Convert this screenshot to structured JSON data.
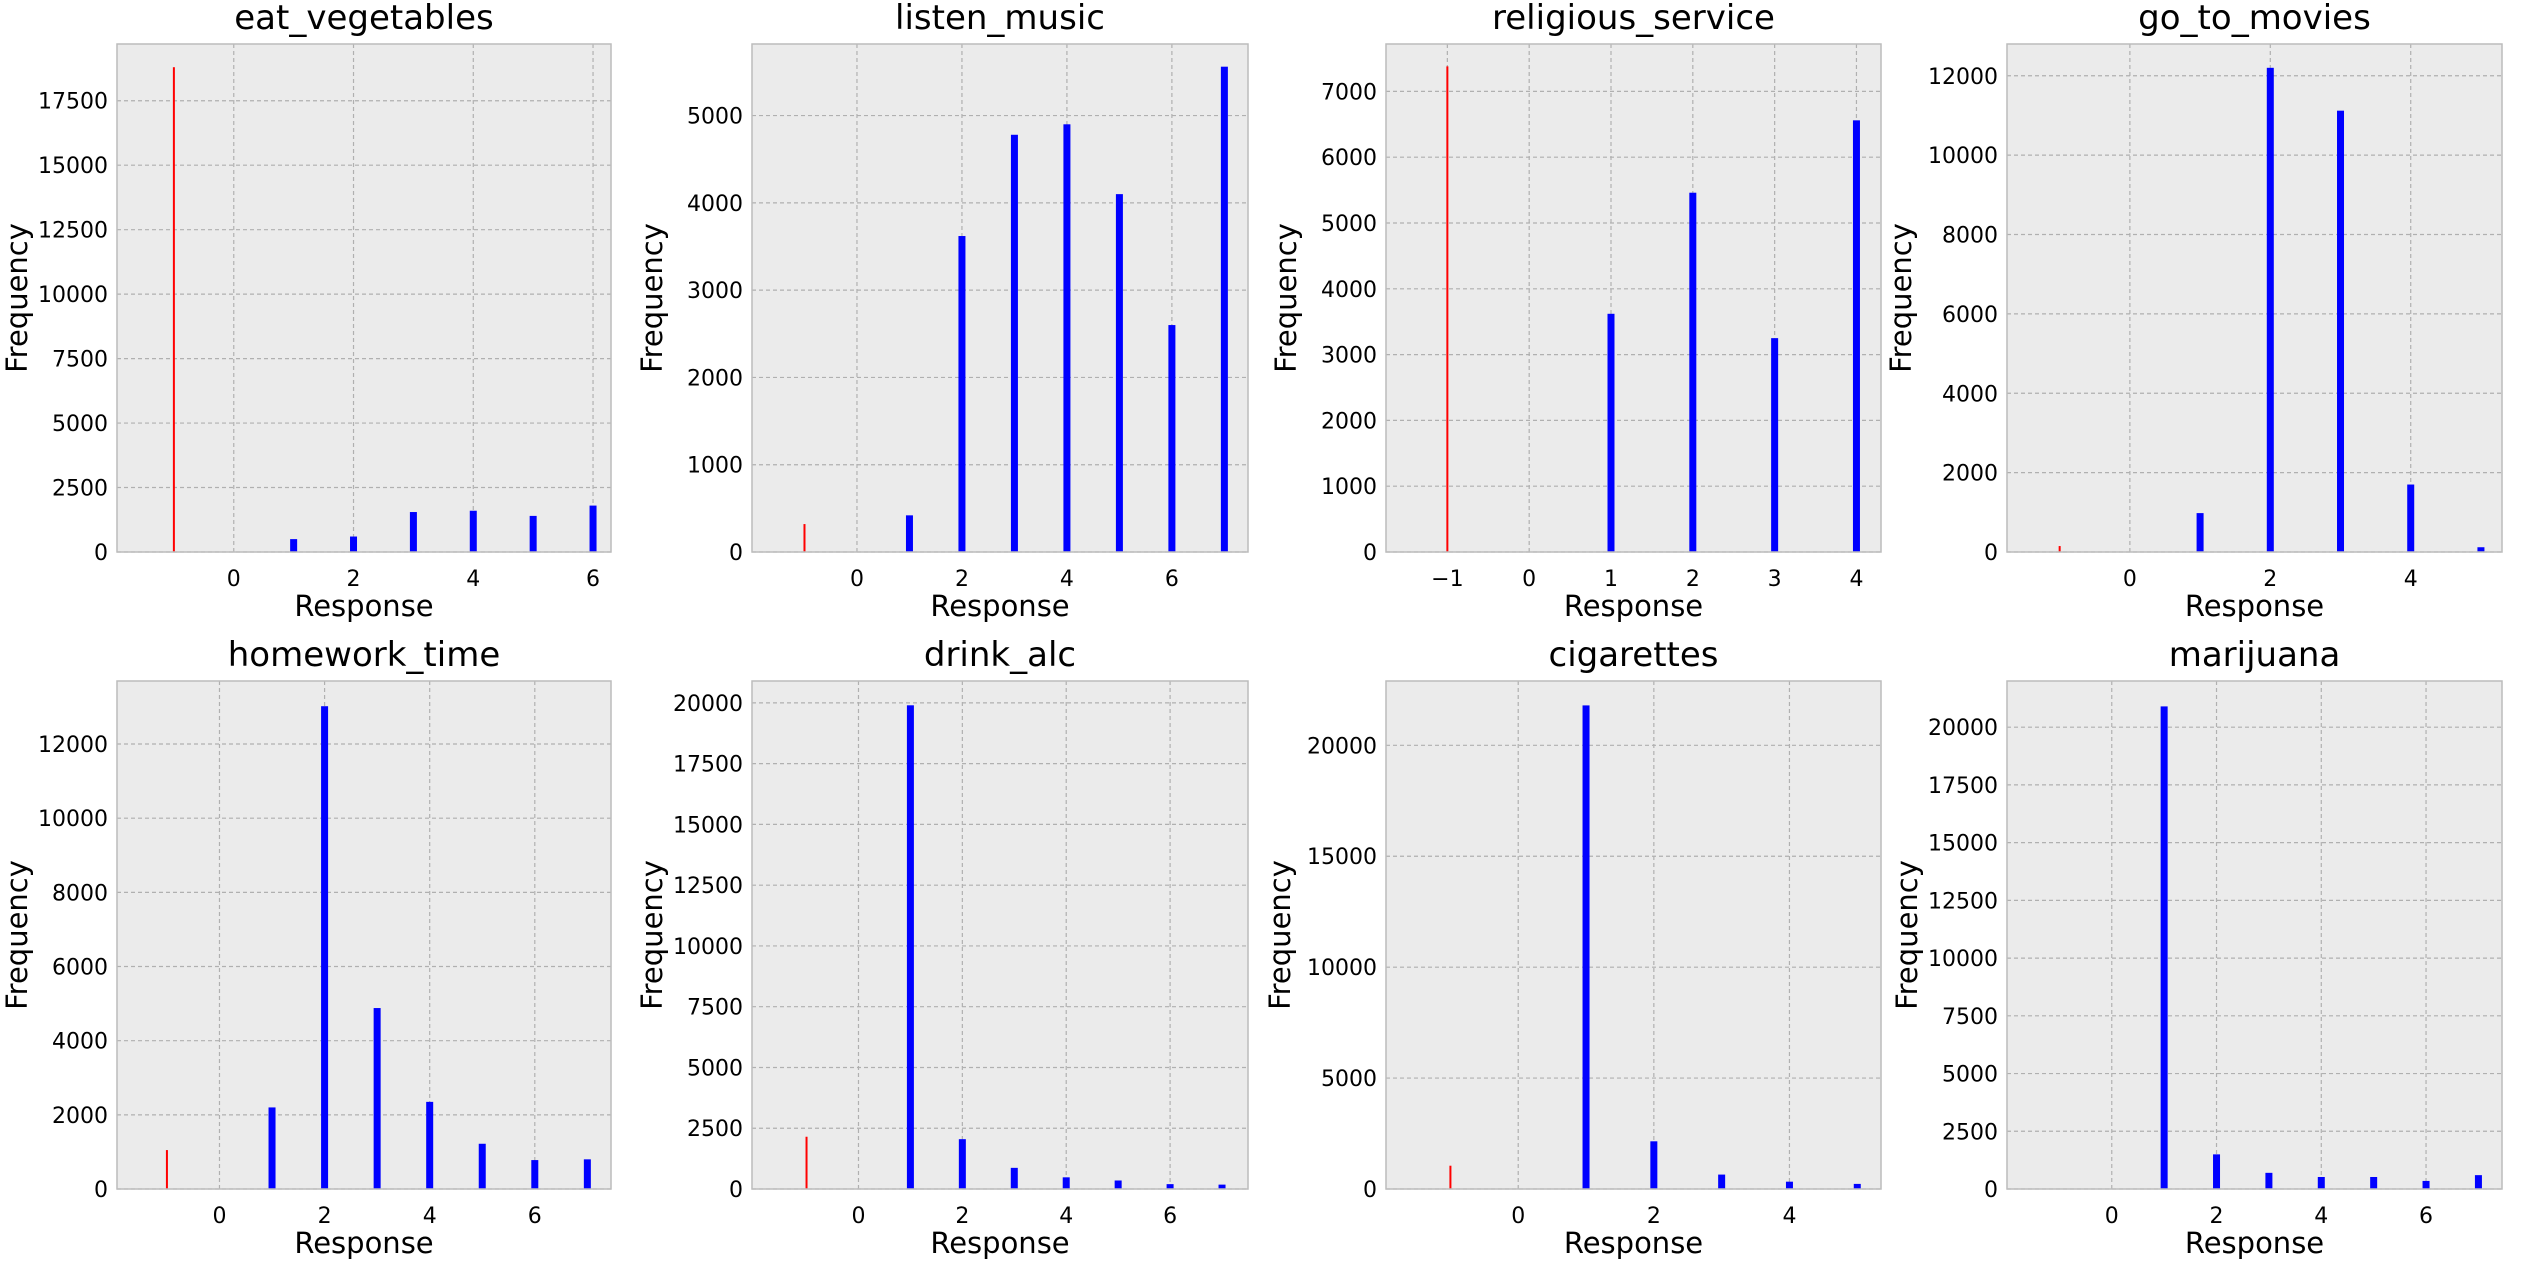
{
  "colors": {
    "background": "#ebebeb",
    "grid": "#b0b0b0",
    "negative_bar": "#ff0000",
    "positive_bar": "#0000ff"
  },
  "chart_data": [
    {
      "type": "bar",
      "title": "eat_vegetables",
      "xlabel": "Response",
      "ylabel": "Frequency",
      "xlim": [
        -1.95,
        6.3
      ],
      "ylim": [
        0,
        19700
      ],
      "xticks": [
        0,
        2,
        4,
        6
      ],
      "xtick_labels": [
        "0",
        "2",
        "4",
        "6"
      ],
      "yticks": [
        0,
        2500,
        5000,
        7500,
        10000,
        12500,
        15000,
        17500
      ],
      "ytick_labels": [
        "0",
        "2500",
        "5000",
        "7500",
        "10000",
        "12500",
        "15000",
        "17500"
      ],
      "grid": true,
      "bars": [
        {
          "x": -1,
          "value": 18800
        },
        {
          "x": 1,
          "value": 500
        },
        {
          "x": 2,
          "value": 600
        },
        {
          "x": 3,
          "value": 1550
        },
        {
          "x": 4,
          "value": 1600
        },
        {
          "x": 5,
          "value": 1400
        },
        {
          "x": 6,
          "value": 1800
        }
      ]
    },
    {
      "type": "bar",
      "title": "listen_music",
      "xlabel": "Response",
      "ylabel": "Frequency",
      "xlim": [
        -2.0,
        7.45
      ],
      "ylim": [
        0,
        5820
      ],
      "xticks": [
        0,
        2,
        4,
        6
      ],
      "xtick_labels": [
        "0",
        "2",
        "4",
        "6"
      ],
      "yticks": [
        0,
        1000,
        2000,
        3000,
        4000,
        5000
      ],
      "ytick_labels": [
        "0",
        "1000",
        "2000",
        "3000",
        "4000",
        "5000"
      ],
      "grid": true,
      "bars": [
        {
          "x": -1,
          "value": 320
        },
        {
          "x": 1,
          "value": 420
        },
        {
          "x": 2,
          "value": 3620
        },
        {
          "x": 3,
          "value": 4780
        },
        {
          "x": 4,
          "value": 4900
        },
        {
          "x": 5,
          "value": 4100
        },
        {
          "x": 6,
          "value": 2600
        },
        {
          "x": 7,
          "value": 5560
        }
      ]
    },
    {
      "type": "bar",
      "title": "religious_service",
      "xlabel": "Response",
      "ylabel": "Frequency",
      "xlim": [
        -1.75,
        4.3
      ],
      "ylim": [
        0,
        7720
      ],
      "xticks": [
        -1,
        0,
        1,
        2,
        3,
        4
      ],
      "xtick_labels": [
        "−1",
        "0",
        "1",
        "2",
        "3",
        "4"
      ],
      "yticks": [
        0,
        1000,
        2000,
        3000,
        4000,
        5000,
        6000,
        7000
      ],
      "ytick_labels": [
        "0",
        "1000",
        "2000",
        "3000",
        "4000",
        "5000",
        "6000",
        "7000"
      ],
      "grid": true,
      "bars": [
        {
          "x": -1,
          "value": 7380
        },
        {
          "x": 1,
          "value": 3620
        },
        {
          "x": 2,
          "value": 5460
        },
        {
          "x": 3,
          "value": 3250
        },
        {
          "x": 4,
          "value": 6560
        }
      ]
    },
    {
      "type": "bar",
      "title": "go_to_movies",
      "xlabel": "Response",
      "ylabel": "Frequency",
      "xlim": [
        -1.75,
        5.3
      ],
      "ylim": [
        0,
        12800
      ],
      "xticks": [
        0,
        2,
        4
      ],
      "xtick_labels": [
        "0",
        "2",
        "4"
      ],
      "yticks": [
        0,
        2000,
        4000,
        6000,
        8000,
        10000,
        12000
      ],
      "ytick_labels": [
        "0",
        "2000",
        "4000",
        "6000",
        "8000",
        "10000",
        "12000"
      ],
      "grid": true,
      "bars": [
        {
          "x": -1,
          "value": 150
        },
        {
          "x": 1,
          "value": 980
        },
        {
          "x": 2,
          "value": 12200
        },
        {
          "x": 3,
          "value": 11120
        },
        {
          "x": 4,
          "value": 1700
        },
        {
          "x": 5,
          "value": 120
        }
      ]
    },
    {
      "type": "bar",
      "title": "homework_time",
      "xlabel": "Response",
      "ylabel": "Frequency",
      "xlim": [
        -1.95,
        7.45
      ],
      "ylim": [
        0,
        13700
      ],
      "xticks": [
        0,
        2,
        4,
        6
      ],
      "xtick_labels": [
        "0",
        "2",
        "4",
        "6"
      ],
      "yticks": [
        0,
        2000,
        4000,
        6000,
        8000,
        10000,
        12000
      ],
      "ytick_labels": [
        "0",
        "2000",
        "4000",
        "6000",
        "8000",
        "10000",
        "12000"
      ],
      "grid": true,
      "bars": [
        {
          "x": -1,
          "value": 1050
        },
        {
          "x": 1,
          "value": 2200
        },
        {
          "x": 2,
          "value": 13020
        },
        {
          "x": 3,
          "value": 4880
        },
        {
          "x": 4,
          "value": 2350
        },
        {
          "x": 5,
          "value": 1220
        },
        {
          "x": 6,
          "value": 780
        },
        {
          "x": 7,
          "value": 800
        }
      ]
    },
    {
      "type": "bar",
      "title": "drink_alc",
      "xlabel": "Response",
      "ylabel": "Frequency",
      "xlim": [
        -2.05,
        7.5
      ],
      "ylim": [
        0,
        20900
      ],
      "xticks": [
        0,
        2,
        4,
        6
      ],
      "xtick_labels": [
        "0",
        "2",
        "4",
        "6"
      ],
      "yticks": [
        0,
        2500,
        5000,
        7500,
        10000,
        12500,
        15000,
        17500,
        20000
      ],
      "ytick_labels": [
        "0",
        "2500",
        "5000",
        "7500",
        "10000",
        "12500",
        "15000",
        "17500",
        "20000"
      ],
      "grid": true,
      "bars": [
        {
          "x": -1,
          "value": 2150
        },
        {
          "x": 1,
          "value": 19900
        },
        {
          "x": 2,
          "value": 2050
        },
        {
          "x": 3,
          "value": 870
        },
        {
          "x": 4,
          "value": 480
        },
        {
          "x": 5,
          "value": 350
        },
        {
          "x": 6,
          "value": 200
        },
        {
          "x": 7,
          "value": 180
        }
      ]
    },
    {
      "type": "bar",
      "title": "cigarettes",
      "xlabel": "Response",
      "ylabel": "Frequency",
      "xlim": [
        -1.95,
        5.35
      ],
      "ylim": [
        0,
        22900
      ],
      "xticks": [
        0,
        2,
        4
      ],
      "xtick_labels": [
        "0",
        "2",
        "4"
      ],
      "yticks": [
        0,
        5000,
        10000,
        15000,
        20000
      ],
      "ytick_labels": [
        "0",
        "5000",
        "10000",
        "15000",
        "20000"
      ],
      "grid": true,
      "bars": [
        {
          "x": -1,
          "value": 1050
        },
        {
          "x": 1,
          "value": 21800
        },
        {
          "x": 2,
          "value": 2150
        },
        {
          "x": 3,
          "value": 650
        },
        {
          "x": 4,
          "value": 330
        },
        {
          "x": 5,
          "value": 230
        }
      ]
    },
    {
      "type": "bar",
      "title": "marijuana",
      "xlabel": "Response",
      "ylabel": "Frequency",
      "xlim": [
        -2.0,
        7.45
      ],
      "ylim": [
        0,
        22000
      ],
      "xticks": [
        0,
        2,
        4,
        6
      ],
      "xtick_labels": [
        "0",
        "2",
        "4",
        "6"
      ],
      "yticks": [
        0,
        2500,
        5000,
        7500,
        10000,
        12500,
        15000,
        17500,
        20000
      ],
      "ytick_labels": [
        "0",
        "2500",
        "5000",
        "7500",
        "10000",
        "12500",
        "15000",
        "17500",
        "20000"
      ],
      "grid": true,
      "bars": [
        {
          "x": -1,
          "value": 0
        },
        {
          "x": 1,
          "value": 20900
        },
        {
          "x": 2,
          "value": 1500
        },
        {
          "x": 3,
          "value": 700
        },
        {
          "x": 4,
          "value": 520
        },
        {
          "x": 5,
          "value": 520
        },
        {
          "x": 6,
          "value": 350
        },
        {
          "x": 7,
          "value": 600
        }
      ]
    }
  ]
}
